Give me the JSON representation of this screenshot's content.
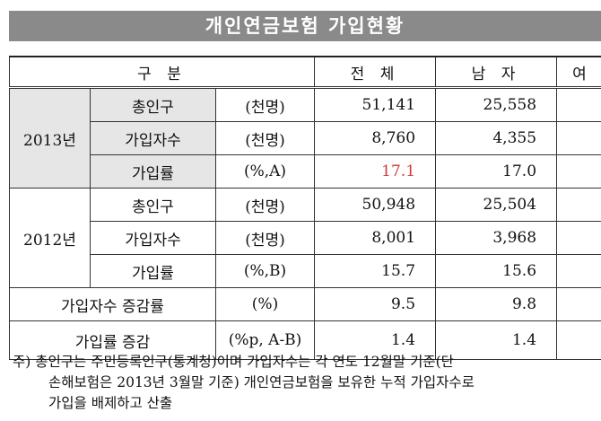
{
  "title": "개인연금보험 가입현황",
  "table": {
    "header": [
      "구  분",
      "전 체",
      "남 자",
      "여 자"
    ],
    "rows": [
      [
        "2013년",
        "총인구",
        "(천명)",
        "51,141",
        "25,558"
      ],
      [
        "가입자수",
        "(천명)",
        "8,760",
        "4,355"
      ],
      [
        "가입률",
        "(%,A)",
        "17.1",
        "17.0"
      ],
      [
        "2012년",
        "총인구",
        "(천명)",
        "50,948",
        "25,504"
      ],
      [
        "가입자수",
        "(천명)",
        "8,001",
        "3,968"
      ],
      [
        "가입률",
        "(%,B)",
        "15.7",
        "15.6"
      ],
      [
        "가입자수 증감률",
        "(%)",
        "9.5",
        "9.8"
      ],
      [
        "가입률 증감",
        "(%p, A-B)",
        "1.4",
        "1.4"
      ]
    ]
  },
  "note": [
    "주) 총인구는 주민등록인구(통계청)이며 가입자수는 각 연도 12월말 기준(단",
    "손해보험은 2013년 3월말 기준) 개인연금보험을 보유한 누적 가입자수로",
    "가입을 배제하고 산출"
  ]
}
